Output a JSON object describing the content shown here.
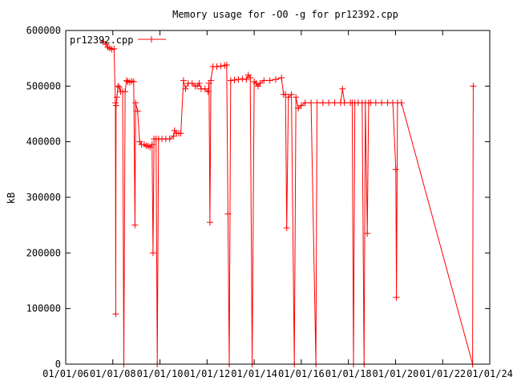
{
  "chart_data": {
    "type": "line",
    "title": "Memory usage for -O0 -g for pr12392.cpp",
    "xlabel": "",
    "ylabel": "kB",
    "ylim": [
      0,
      600000
    ],
    "yticks": [
      0,
      100000,
      200000,
      300000,
      400000,
      500000,
      600000
    ],
    "ytick_labels": [
      "0",
      "100000",
      "200000",
      "300000",
      "400000",
      "500000",
      "600000"
    ],
    "xlim": [
      "2006-01-01",
      "2024-01-01"
    ],
    "xticks": [
      "2006-01-01",
      "2008-01-01",
      "2010-01-01",
      "2012-01-01",
      "2014-01-01",
      "2016-01-01",
      "2018-01-01",
      "2020-01-01",
      "2022-01-01",
      "2024-01-01"
    ],
    "xtick_labels": [
      "01/01/06",
      "01/01/08",
      "01/01/10",
      "01/01/12",
      "01/01/14",
      "01/01/16",
      "01/01/18",
      "01/01/20",
      "01/01/22",
      "01/01/24"
    ],
    "grid": false,
    "legend": "top-left",
    "series": [
      {
        "name": "pr12392.cpp",
        "color": "#ff0000",
        "points": [
          [
            "2007-08-01",
            580000
          ],
          [
            "2007-09-15",
            575000
          ],
          [
            "2007-10-15",
            570000
          ],
          [
            "2007-11-15",
            568000
          ],
          [
            "2007-12-15",
            566000
          ],
          [
            "2008-01-20",
            567000
          ],
          [
            "2008-02-10",
            470000
          ],
          [
            "2008-02-15",
            90000
          ],
          [
            "2008-02-20",
            465000
          ],
          [
            "2008-03-05",
            480000
          ],
          [
            "2008-03-20",
            500000
          ],
          [
            "2008-04-10",
            498000
          ],
          [
            "2008-05-01",
            490000
          ],
          [
            "2008-06-01",
            490000
          ],
          [
            "2008-06-20",
            0
          ],
          [
            "2008-07-10",
            490000
          ],
          [
            "2008-08-01",
            510000
          ],
          [
            "2008-08-20",
            508000
          ],
          [
            "2008-09-20",
            507000
          ],
          [
            "2008-10-20",
            509000
          ],
          [
            "2008-11-20",
            508000
          ],
          [
            "2008-12-10",
            250000
          ],
          [
            "2008-12-20",
            470000
          ],
          [
            "2009-01-20",
            455000
          ],
          [
            "2009-02-20",
            400000
          ],
          [
            "2009-03-20",
            395000
          ],
          [
            "2009-05-01",
            395000
          ],
          [
            "2009-06-01",
            393000
          ],
          [
            "2009-07-01",
            392000
          ],
          [
            "2009-08-01",
            390000
          ],
          [
            "2009-09-01",
            395000
          ],
          [
            "2009-09-15",
            200000
          ],
          [
            "2009-10-01",
            405000
          ],
          [
            "2009-11-01",
            405000
          ],
          [
            "2009-11-20",
            0
          ],
          [
            "2009-12-10",
            405000
          ],
          [
            "2010-02-01",
            405000
          ],
          [
            "2010-04-01",
            405000
          ],
          [
            "2010-06-01",
            405000
          ],
          [
            "2010-08-01",
            410000
          ],
          [
            "2010-08-15",
            420000
          ],
          [
            "2010-09-15",
            415000
          ],
          [
            "2010-10-20",
            415000
          ],
          [
            "2010-11-20",
            415000
          ],
          [
            "2011-01-01",
            510000
          ],
          [
            "2011-02-01",
            495000
          ],
          [
            "2011-03-15",
            505000
          ],
          [
            "2011-05-15",
            505000
          ],
          [
            "2011-07-01",
            500000
          ],
          [
            "2011-08-01",
            500000
          ],
          [
            "2011-09-01",
            505000
          ],
          [
            "2011-10-01",
            495000
          ],
          [
            "2011-12-01",
            495000
          ],
          [
            "2012-01-15",
            490000
          ],
          [
            "2012-02-01",
            505000
          ],
          [
            "2012-02-15",
            255000
          ],
          [
            "2012-03-01",
            510000
          ],
          [
            "2012-04-01",
            535000
          ],
          [
            "2012-06-01",
            535000
          ],
          [
            "2012-08-01",
            536000
          ],
          [
            "2012-10-01",
            537000
          ],
          [
            "2012-11-01",
            538000
          ],
          [
            "2012-11-20",
            270000
          ],
          [
            "2012-12-10",
            0
          ],
          [
            "2013-01-01",
            510000
          ],
          [
            "2013-03-01",
            511000
          ],
          [
            "2013-05-01",
            512000
          ],
          [
            "2013-07-01",
            513000
          ],
          [
            "2013-09-01",
            512000
          ],
          [
            "2013-10-01",
            520000
          ],
          [
            "2013-11-01",
            515000
          ],
          [
            "2013-12-01",
            0
          ],
          [
            "2014-01-01",
            508000
          ],
          [
            "2014-02-01",
            505000
          ],
          [
            "2014-03-01",
            500000
          ],
          [
            "2014-04-01",
            505000
          ],
          [
            "2014-06-01",
            510000
          ],
          [
            "2014-09-01",
            510000
          ],
          [
            "2014-12-01",
            512000
          ],
          [
            "2015-03-01",
            515000
          ],
          [
            "2015-04-01",
            485000
          ],
          [
            "2015-05-01",
            485000
          ],
          [
            "2015-05-20",
            245000
          ],
          [
            "2015-06-15",
            480000
          ],
          [
            "2015-08-01",
            485000
          ],
          [
            "2015-09-15",
            0
          ],
          [
            "2015-10-10",
            480000
          ],
          [
            "2015-11-15",
            460000
          ],
          [
            "2016-01-01",
            465000
          ],
          [
            "2016-03-01",
            470000
          ],
          [
            "2016-06-01",
            470000
          ],
          [
            "2016-08-15",
            0
          ],
          [
            "2016-09-01",
            470000
          ],
          [
            "2016-12-01",
            470000
          ],
          [
            "2017-03-01",
            470000
          ],
          [
            "2017-06-01",
            470000
          ],
          [
            "2017-09-01",
            470000
          ],
          [
            "2017-10-01",
            495000
          ],
          [
            "2017-11-01",
            470000
          ],
          [
            "2018-02-01",
            470000
          ],
          [
            "2018-03-01",
            470000
          ],
          [
            "2018-03-20",
            0
          ],
          [
            "2018-04-10",
            470000
          ],
          [
            "2018-06-01",
            470000
          ],
          [
            "2018-08-01",
            470000
          ],
          [
            "2018-09-01",
            0
          ],
          [
            "2018-09-20",
            470000
          ],
          [
            "2018-10-20",
            235000
          ],
          [
            "2018-11-10",
            470000
          ],
          [
            "2018-12-10",
            470000
          ],
          [
            "2019-03-01",
            470000
          ],
          [
            "2019-06-01",
            470000
          ],
          [
            "2019-09-01",
            470000
          ],
          [
            "2019-11-20",
            470000
          ],
          [
            "2020-01-05",
            350000
          ],
          [
            "2020-01-15",
            120000
          ],
          [
            "2020-02-01",
            470000
          ],
          [
            "2020-04-01",
            470000
          ],
          [
            "2023-04-10",
            0
          ],
          [
            "2023-04-20",
            500000
          ]
        ]
      }
    ]
  }
}
